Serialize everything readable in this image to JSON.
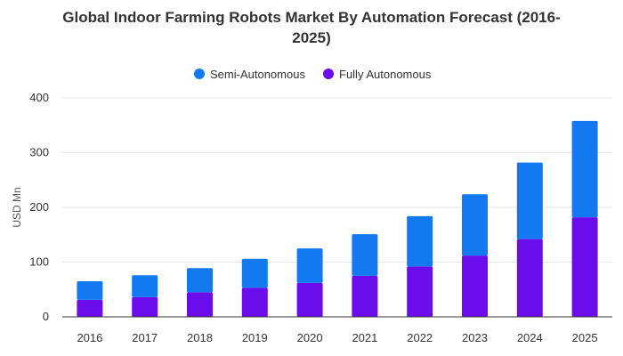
{
  "chart_data": {
    "type": "bar",
    "stacked": true,
    "title": "Global Indoor Farming Robots Market By Automation Forecast (2016-2025)",
    "ylabel": "USD Mn",
    "xlabel": "",
    "ylim": [
      0,
      400
    ],
    "yticks": [
      0,
      100,
      200,
      300,
      400
    ],
    "grid": true,
    "legend_position": "top-center",
    "categories": [
      "2016",
      "2017",
      "2018",
      "2019",
      "2020",
      "2021",
      "2022",
      "2023",
      "2024",
      "2025"
    ],
    "series": [
      {
        "name": "Fully Autonomous",
        "color": "#6a0dea",
        "values": [
          31,
          36,
          45,
          53,
          62,
          75,
          92,
          112,
          142,
          182
        ]
      },
      {
        "name": "Semi-Autonomous",
        "color": "#1379f0",
        "values": [
          34,
          40,
          44,
          53,
          63,
          76,
          92,
          112,
          140,
          176
        ]
      }
    ],
    "legend_order": [
      "Semi-Autonomous",
      "Fully Autonomous"
    ]
  }
}
